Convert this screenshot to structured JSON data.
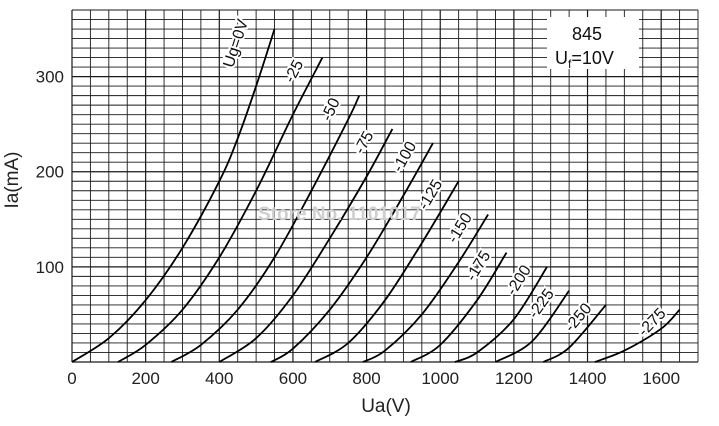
{
  "chart_data": {
    "type": "line",
    "title": "",
    "xlabel": "Ua(V)",
    "ylabel": "Ia(mA)",
    "xlim": [
      0,
      1700
    ],
    "ylim": [
      0,
      370
    ],
    "x_ticks": [
      "0",
      "200",
      "400",
      "600",
      "800",
      "1000",
      "1200",
      "1400",
      "1600"
    ],
    "y_ticks": [
      "100",
      "200",
      "300"
    ],
    "grid": true,
    "info_box": {
      "tube": "845",
      "filament_label": "U",
      "filament_sub": "f",
      "filament_value": "=10V"
    },
    "watermark": "Store No. 1101017",
    "series": [
      {
        "name": "Ug=0V",
        "x": [
          0,
          100,
          200,
          300,
          400,
          450,
          500,
          550
        ],
        "y": [
          0,
          25,
          65,
          120,
          190,
          235,
          290,
          350
        ]
      },
      {
        "name": "-25",
        "x": [
          125,
          200,
          300,
          400,
          500,
          600,
          680
        ],
        "y": [
          0,
          18,
          55,
          110,
          180,
          260,
          320
        ]
      },
      {
        "name": "-50",
        "x": [
          270,
          350,
          450,
          550,
          650,
          750,
          780
        ],
        "y": [
          0,
          18,
          55,
          110,
          180,
          255,
          280
        ]
      },
      {
        "name": "-75",
        "x": [
          400,
          500,
          600,
          700,
          800,
          870
        ],
        "y": [
          0,
          25,
          70,
          130,
          195,
          245
        ]
      },
      {
        "name": "-100",
        "x": [
          540,
          600,
          700,
          800,
          900,
          980
        ],
        "y": [
          0,
          14,
          55,
          110,
          175,
          230
        ]
      },
      {
        "name": "-125",
        "x": [
          660,
          750,
          850,
          950,
          1050
        ],
        "y": [
          0,
          20,
          65,
          125,
          190
        ]
      },
      {
        "name": "-150",
        "x": [
          790,
          850,
          950,
          1050,
          1130
        ],
        "y": [
          0,
          12,
          50,
          105,
          155
        ]
      },
      {
        "name": "-175",
        "x": [
          920,
          1000,
          1100,
          1180
        ],
        "y": [
          0,
          18,
          65,
          115
        ]
      },
      {
        "name": "-200",
        "x": [
          1040,
          1100,
          1200,
          1290
        ],
        "y": [
          0,
          10,
          45,
          100
        ]
      },
      {
        "name": "-225",
        "x": [
          1150,
          1250,
          1350
        ],
        "y": [
          0,
          22,
          75
        ]
      },
      {
        "name": "-250",
        "x": [
          1280,
          1350,
          1450
        ],
        "y": [
          0,
          15,
          60
        ]
      },
      {
        "name": "-275",
        "x": [
          1420,
          1500,
          1600,
          1650
        ],
        "y": [
          0,
          12,
          35,
          55
        ]
      }
    ]
  }
}
